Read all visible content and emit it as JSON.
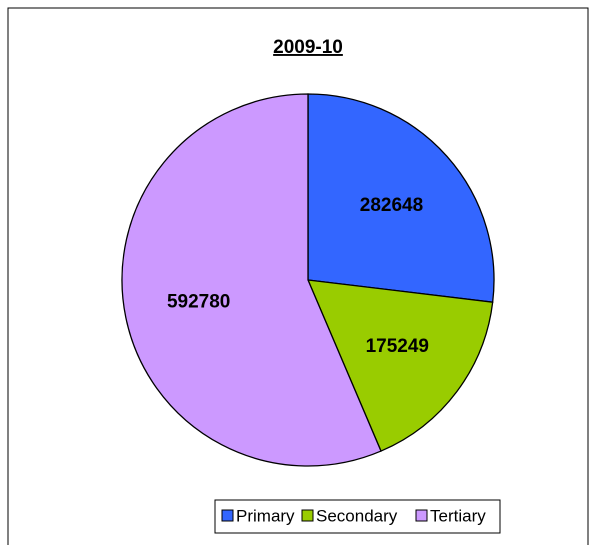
{
  "chart_data": {
    "type": "pie",
    "title": "2009-10",
    "categories": [
      "Primary",
      "Secondary",
      "Tertiary"
    ],
    "values": [
      282648,
      175249,
      592780
    ],
    "colors": [
      "#3366ff",
      "#99cc00",
      "#cc99ff"
    ],
    "legend": "bottom"
  }
}
